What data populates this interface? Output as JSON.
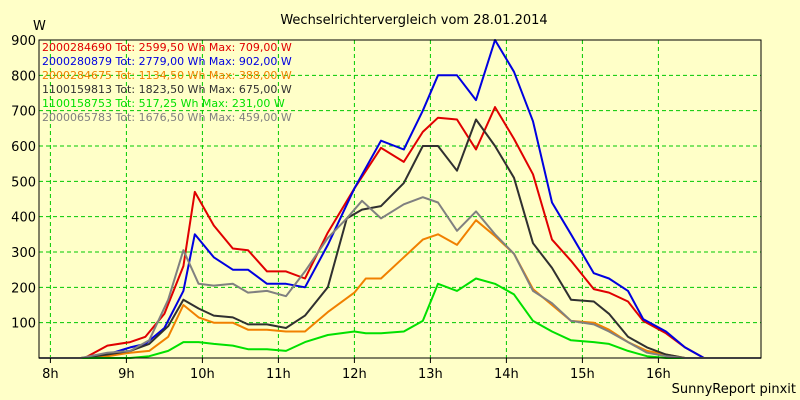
{
  "chart_data": {
    "type": "line",
    "title": "Wechselrichtervergleich vom 28.01.2014",
    "ylabel": "W",
    "xlabel": "",
    "ylim": [
      0,
      900
    ],
    "yticks": [
      100,
      200,
      300,
      400,
      500,
      600,
      700,
      800,
      900
    ],
    "xticks": [
      "8h",
      "9h",
      "10h",
      "11h",
      "12h",
      "13h",
      "14h",
      "15h",
      "16h"
    ],
    "x_range_hours": [
      7.85,
      17.35
    ],
    "grid": true,
    "legend_position": "top-left",
    "footer": "SunnyReport pinxit",
    "series": [
      {
        "name": "2000284690",
        "legend": "2000284690 Tot: 2599,50 Wh Max: 709,00 W",
        "color": "#e00000",
        "x": [
          8.25,
          8.45,
          8.75,
          9.05,
          9.25,
          9.5,
          9.75,
          9.9,
          10.15,
          10.4,
          10.6,
          10.85,
          11.1,
          11.35,
          11.65,
          12,
          12.35,
          12.65,
          12.9,
          13.1,
          13.35,
          13.6,
          13.85,
          14.1,
          14.35,
          14.6,
          14.85,
          15.15,
          15.35,
          15.6,
          15.8,
          16.1,
          16.35,
          16.6
        ],
        "y": [
          0,
          0,
          35,
          45,
          60,
          125,
          260,
          470,
          375,
          310,
          305,
          245,
          245,
          225,
          355,
          480,
          595,
          555,
          640,
          680,
          675,
          590,
          710,
          620,
          520,
          335,
          275,
          195,
          185,
          160,
          105,
          70,
          30,
          0
        ]
      },
      {
        "name": "2000280879",
        "legend": "2000280879 Tot: 2779,00 Wh Max: 902,00 W",
        "color": "#0000e0",
        "x": [
          8.25,
          8.45,
          8.75,
          9.05,
          9.25,
          9.5,
          9.75,
          9.9,
          10.15,
          10.4,
          10.6,
          10.85,
          11.1,
          11.35,
          11.65,
          12,
          12.35,
          12.65,
          12.9,
          13.1,
          13.35,
          13.6,
          13.85,
          14.1,
          14.35,
          14.6,
          14.85,
          15.15,
          15.35,
          15.6,
          15.8,
          16.1,
          16.35,
          16.6
        ],
        "y": [
          0,
          0,
          10,
          30,
          40,
          85,
          190,
          350,
          285,
          250,
          250,
          210,
          210,
          200,
          320,
          480,
          615,
          590,
          700,
          800,
          800,
          730,
          900,
          810,
          670,
          440,
          350,
          240,
          225,
          190,
          110,
          75,
          30,
          0
        ]
      },
      {
        "name": "2000284675",
        "legend": "2000284675 Tot: 1134,50 Wh Max: 388,00 W",
        "color": "#f08000",
        "x": [
          8.4,
          8.75,
          9.05,
          9.3,
          9.55,
          9.75,
          9.95,
          10.15,
          10.4,
          10.6,
          10.85,
          11.1,
          11.35,
          11.65,
          12,
          12.15,
          12.35,
          12.65,
          12.9,
          13.1,
          13.35,
          13.6,
          13.85,
          14.1,
          14.35,
          14.6,
          14.85,
          15.15,
          15.35,
          15.6,
          15.85,
          16.1,
          16.35,
          16.6
        ],
        "y": [
          0,
          5,
          15,
          20,
          60,
          150,
          115,
          100,
          100,
          80,
          80,
          75,
          75,
          130,
          185,
          225,
          225,
          285,
          335,
          350,
          320,
          390,
          345,
          295,
          195,
          150,
          105,
          100,
          80,
          45,
          20,
          10,
          0,
          0
        ]
      },
      {
        "name": "1100159813",
        "legend": "1100159813 Tot: 1823,50 Wh Max: 675,00 W",
        "color": "#303030",
        "x": [
          8.4,
          8.75,
          9.05,
          9.3,
          9.55,
          9.75,
          9.95,
          10.15,
          10.4,
          10.6,
          10.85,
          11.1,
          11.35,
          11.65,
          11.9,
          12.1,
          12.35,
          12.65,
          12.9,
          13.1,
          13.35,
          13.6,
          13.85,
          14.1,
          14.35,
          14.6,
          14.85,
          15.15,
          15.35,
          15.6,
          15.85,
          16.1,
          16.35,
          16.6
        ],
        "y": [
          0,
          10,
          20,
          40,
          90,
          165,
          140,
          120,
          115,
          95,
          95,
          85,
          120,
          200,
          395,
          420,
          430,
          495,
          600,
          600,
          530,
          675,
          600,
          510,
          325,
          255,
          165,
          160,
          125,
          60,
          30,
          10,
          0,
          0
        ]
      },
      {
        "name": "1100158753",
        "legend": "1100158753 Tot: 517,25 Wh Max: 231,00 W",
        "color": "#00e000",
        "x": [
          8.4,
          8.75,
          9.05,
          9.3,
          9.55,
          9.75,
          9.95,
          10.15,
          10.4,
          10.6,
          10.85,
          11.1,
          11.35,
          11.65,
          12,
          12.15,
          12.35,
          12.65,
          12.9,
          13.1,
          13.35,
          13.6,
          13.85,
          14.1,
          14.35,
          14.6,
          14.85,
          15.15,
          15.35,
          15.6,
          15.85,
          16.1,
          16.35,
          16.6
        ],
        "y": [
          0,
          0,
          0,
          5,
          20,
          45,
          45,
          40,
          35,
          25,
          25,
          20,
          45,
          65,
          75,
          70,
          70,
          75,
          105,
          210,
          190,
          225,
          210,
          180,
          105,
          75,
          50,
          45,
          40,
          20,
          5,
          0,
          0,
          0
        ]
      },
      {
        "name": "2000065783",
        "legend": "2000065783 Tot: 1676,50 Wh Max: 459,00 W",
        "color": "#808080",
        "x": [
          8.4,
          8.75,
          9.05,
          9.3,
          9.55,
          9.75,
          9.95,
          10.15,
          10.4,
          10.6,
          10.85,
          11.1,
          11.35,
          11.65,
          11.9,
          12.1,
          12.35,
          12.65,
          12.9,
          13.1,
          13.35,
          13.6,
          13.85,
          14.1,
          14.35,
          14.6,
          14.85,
          15.15,
          15.35,
          15.6,
          15.85,
          16.1,
          16.35,
          16.6
        ],
        "y": [
          0,
          15,
          20,
          50,
          165,
          305,
          210,
          205,
          210,
          185,
          190,
          175,
          245,
          340,
          395,
          445,
          395,
          435,
          455,
          440,
          360,
          415,
          350,
          295,
          190,
          155,
          105,
          95,
          75,
          45,
          15,
          5,
          0,
          0
        ]
      }
    ]
  }
}
